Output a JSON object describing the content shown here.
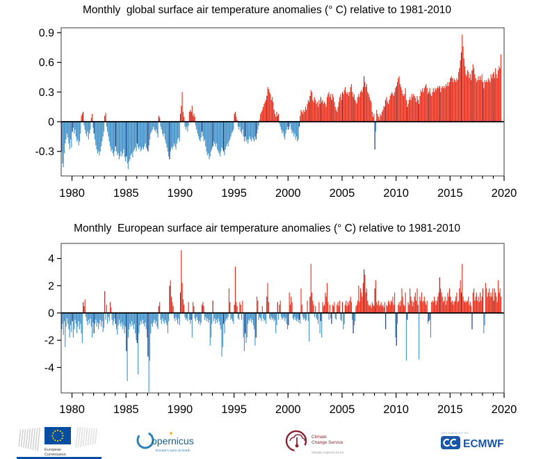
{
  "chart_data": [
    {
      "type": "bar",
      "title": "Monthly  global surface air temperature anomalies (° C) relative to 1981-2010",
      "xlabel": "",
      "ylabel": "",
      "x_start_year": 1979,
      "x_frequency": "monthly",
      "x_range": [
        1979,
        2020
      ],
      "ylim": [
        -0.55,
        0.95
      ],
      "grid": false,
      "legend": "none",
      "y_ticks": [
        {
          "label": "0.9",
          "value": 0.9
        },
        {
          "label": "0.6",
          "value": 0.6
        },
        {
          "label": "0.3",
          "value": 0.3
        },
        {
          "label": "0",
          "value": 0
        },
        {
          "label": "-0.3",
          "value": -0.3
        }
      ],
      "x_ticks_major": [
        "1980",
        "1985",
        "1990",
        "1995",
        "2000",
        "2005",
        "2010",
        "2015",
        "2020"
      ],
      "values": [
        -0.3,
        -0.42,
        -0.46,
        -0.32,
        -0.22,
        -0.18,
        -0.12,
        -0.16,
        -0.22,
        -0.28,
        -0.18,
        -0.26,
        -0.1,
        -0.06,
        -0.12,
        -0.08,
        -0.15,
        -0.2,
        -0.18,
        -0.24,
        -0.2,
        -0.12,
        0.06,
        0.08,
        0.1,
        -0.04,
        -0.08,
        -0.12,
        -0.15,
        -0.1,
        -0.18,
        -0.12,
        -0.08,
        0.04,
        0.08,
        -0.06,
        -0.12,
        -0.18,
        -0.24,
        -0.28,
        -0.32,
        -0.3,
        -0.34,
        -0.3,
        -0.25,
        -0.2,
        -0.15,
        -0.1,
        0.06,
        0.09,
        -0.05,
        -0.1,
        -0.15,
        -0.2,
        -0.25,
        -0.3,
        -0.28,
        -0.32,
        -0.35,
        -0.3,
        -0.25,
        -0.3,
        -0.34,
        -0.32,
        -0.38,
        -0.35,
        -0.3,
        -0.35,
        -0.32,
        -0.28,
        -0.36,
        -0.4,
        -0.35,
        -0.42,
        -0.48,
        -0.4,
        -0.38,
        -0.34,
        -0.32,
        -0.36,
        -0.3,
        -0.28,
        -0.26,
        -0.3,
        -0.22,
        -0.26,
        -0.28,
        -0.25,
        -0.3,
        -0.28,
        -0.26,
        -0.28,
        -0.25,
        -0.22,
        -0.26,
        -0.28,
        -0.3,
        -0.24,
        -0.18,
        -0.12,
        -0.1,
        -0.08,
        -0.05,
        -0.08,
        -0.1,
        -0.08,
        -0.12,
        -0.16,
        0.06,
        0.04,
        -0.05,
        -0.08,
        -0.12,
        -0.15,
        -0.12,
        -0.18,
        -0.22,
        -0.26,
        -0.3,
        -0.35,
        -0.38,
        -0.3,
        -0.26,
        -0.28,
        -0.25,
        -0.22,
        -0.25,
        -0.28,
        -0.22,
        -0.18,
        -0.16,
        -0.2,
        0.08,
        0.16,
        0.3,
        0.1,
        0.05,
        -0.05,
        -0.08,
        -0.05,
        -0.1,
        -0.04,
        0.1,
        0.12,
        0.1,
        0.16,
        0.06,
        0.08,
        0.05,
        -0.04,
        -0.08,
        -0.12,
        -0.15,
        -0.18,
        -0.2,
        -0.16,
        -0.1,
        -0.15,
        -0.2,
        -0.18,
        -0.25,
        -0.3,
        -0.34,
        -0.32,
        -0.38,
        -0.35,
        -0.3,
        -0.28,
        -0.25,
        -0.2,
        -0.22,
        -0.25,
        -0.22,
        -0.28,
        -0.3,
        -0.32,
        -0.35,
        -0.3,
        -0.26,
        -0.28,
        -0.3,
        -0.34,
        -0.28,
        -0.25,
        -0.22,
        -0.25,
        -0.2,
        -0.18,
        -0.15,
        -0.12,
        -0.1,
        -0.08,
        0.08,
        0.1,
        0.05,
        0.02,
        -0.05,
        -0.08,
        -0.05,
        -0.1,
        -0.12,
        -0.08,
        -0.15,
        -0.2,
        -0.15,
        -0.2,
        -0.18,
        -0.22,
        -0.18,
        -0.15,
        -0.18,
        -0.2,
        -0.16,
        -0.18,
        -0.2,
        -0.15,
        -0.18,
        -0.12,
        -0.08,
        -0.04,
        0.02,
        0.08,
        0.1,
        0.12,
        0.15,
        0.18,
        0.2,
        0.22,
        0.26,
        0.35,
        0.33,
        0.3,
        0.28,
        0.22,
        0.25,
        0.2,
        0.12,
        0.08,
        0.05,
        0.1,
        0.06,
        0.08,
        -0.02,
        -0.05,
        -0.08,
        -0.12,
        -0.1,
        -0.15,
        -0.18,
        -0.12,
        -0.08,
        -0.05,
        -0.08,
        -0.05,
        -0.02,
        -0.08,
        -0.12,
        -0.1,
        -0.15,
        -0.12,
        -0.18,
        -0.15,
        -0.2,
        -0.18,
        -0.05,
        0.06,
        0.12,
        0.1,
        0.08,
        0.12,
        0.1,
        0.15,
        0.12,
        0.18,
        0.22,
        0.2,
        0.26,
        0.32,
        0.3,
        0.22,
        0.2,
        0.25,
        0.22,
        0.18,
        0.2,
        0.15,
        0.22,
        0.18,
        0.25,
        0.2,
        0.22,
        0.18,
        0.2,
        0.18,
        0.15,
        0.25,
        0.28,
        0.3,
        0.25,
        0.28,
        0.22,
        0.28,
        0.25,
        0.2,
        0.15,
        0.12,
        0.1,
        0.15,
        0.2,
        0.25,
        0.28,
        0.22,
        0.3,
        0.28,
        0.32,
        0.35,
        0.3,
        0.28,
        0.3,
        0.26,
        0.3,
        0.35,
        0.38,
        0.3,
        0.25,
        0.28,
        0.22,
        0.2,
        0.18,
        0.25,
        0.28,
        0.25,
        0.3,
        0.32,
        0.3,
        0.35,
        0.46,
        0.4,
        0.35,
        0.38,
        0.3,
        0.28,
        0.25,
        0.22,
        0.2,
        0.1,
        0.05,
        0.08,
        -0.28,
        -0.1,
        0.12,
        0.08,
        0.05,
        0.02,
        0.08,
        0.06,
        0.1,
        0.12,
        0.16,
        0.15,
        0.22,
        0.25,
        0.2,
        0.18,
        0.22,
        0.26,
        0.28,
        0.3,
        0.28,
        0.26,
        0.3,
        0.34,
        0.36,
        0.4,
        0.44,
        0.46,
        0.38,
        0.35,
        0.32,
        0.28,
        0.26,
        0.28,
        0.34,
        0.22,
        0.15,
        0.18,
        0.22,
        0.25,
        0.22,
        0.28,
        0.25,
        0.28,
        0.26,
        0.24,
        0.2,
        0.26,
        0.22,
        0.18,
        0.26,
        0.32,
        0.3,
        0.34,
        0.3,
        0.34,
        0.36,
        0.38,
        0.34,
        0.28,
        0.3,
        0.34,
        0.28,
        0.26,
        0.3,
        0.34,
        0.3,
        0.34,
        0.32,
        0.34,
        0.36,
        0.34,
        0.36,
        0.3,
        0.34,
        0.36,
        0.34,
        0.36,
        0.34,
        0.38,
        0.36,
        0.4,
        0.36,
        0.4,
        0.44,
        0.46,
        0.44,
        0.4,
        0.44,
        0.42,
        0.4,
        0.44,
        0.42,
        0.5,
        0.54,
        0.62,
        0.7,
        0.88,
        0.76,
        0.64,
        0.56,
        0.48,
        0.46,
        0.52,
        0.5,
        0.44,
        0.48,
        0.42,
        0.52,
        0.58,
        0.54,
        0.48,
        0.44,
        0.4,
        0.42,
        0.46,
        0.42,
        0.46,
        0.42,
        0.48,
        0.4,
        0.34,
        0.42,
        0.4,
        0.42,
        0.4,
        0.44,
        0.42,
        0.4,
        0.48,
        0.44,
        0.48,
        0.5,
        0.44,
        0.54,
        0.48,
        0.44,
        0.52,
        0.56,
        0.54,
        0.68
      ]
    },
    {
      "type": "bar",
      "title": "Monthly  European surface air temperature anomalies (° C) relative to 1981-2010",
      "xlabel": "",
      "ylabel": "",
      "x_start_year": 1979,
      "x_frequency": "monthly",
      "x_range": [
        1979,
        2020
      ],
      "ylim": [
        -5.9,
        5.1
      ],
      "grid": false,
      "legend": "none",
      "y_ticks": [
        {
          "label": "4",
          "value": 4
        },
        {
          "label": "2",
          "value": 2
        },
        {
          "label": "0",
          "value": 0
        },
        {
          "label": "-2",
          "value": -2
        },
        {
          "label": "-4",
          "value": -4
        }
      ],
      "x_ticks_major": [
        "1980",
        "1985",
        "1990",
        "1995",
        "2000",
        "2005",
        "2010",
        "2015",
        "2020"
      ],
      "values": [
        -1.2,
        -0.8,
        -1.6,
        -0.6,
        -2.5,
        -1.0,
        -0.4,
        -0.8,
        -1.2,
        -1.8,
        -0.9,
        -1.4,
        -0.6,
        -1.8,
        -1.2,
        -0.5,
        -0.8,
        -1.5,
        -1.0,
        -0.6,
        -1.2,
        -0.8,
        -1.5,
        -2.2,
        0.8,
        0.5,
        1.0,
        -0.3,
        -0.6,
        -0.9,
        -0.5,
        -0.8,
        -0.4,
        -1.0,
        -1.8,
        -0.7,
        -1.5,
        -0.8,
        -0.5,
        -1.0,
        -0.7,
        -1.2,
        -0.8,
        -0.5,
        -1.0,
        -0.6,
        -1.4,
        -1.1,
        1.6,
        -0.5,
        0.6,
        -0.8,
        -0.3,
        -0.6,
        0.8,
        0.4,
        -0.5,
        -0.9,
        -0.6,
        -0.4,
        -0.8,
        -1.2,
        -1.6,
        -0.9,
        -0.5,
        -0.8,
        -1.0,
        -0.7,
        -1.2,
        -0.9,
        -1.5,
        -1.0,
        -2.8,
        -5.0,
        -1.8,
        -1.2,
        -0.8,
        -1.0,
        -0.6,
        -0.9,
        -1.2,
        -0.8,
        -1.5,
        -2.0,
        -2.2,
        -4.5,
        -1.5,
        -0.9,
        -0.6,
        -0.8,
        -0.5,
        -0.8,
        -1.0,
        -0.7,
        -1.2,
        -1.8,
        -3.2,
        -5.8,
        -3.5,
        -1.5,
        -0.8,
        -1.0,
        -0.7,
        -0.5,
        -0.8,
        -0.6,
        -1.0,
        -1.2,
        0.5,
        0.8,
        -0.5,
        -0.8,
        -0.4,
        -0.6,
        -0.8,
        -0.5,
        -0.7,
        -0.9,
        -1.5,
        -0.6,
        2.0,
        2.4,
        1.2,
        0.8,
        0.5,
        -0.4,
        -0.6,
        -0.3,
        -0.5,
        -0.8,
        -0.4,
        -0.9,
        1.5,
        4.6,
        2.2,
        1.0,
        0.6,
        -0.3,
        -0.5,
        -0.4,
        -0.6,
        0.8,
        -0.5,
        -0.8,
        -0.5,
        -1.8,
        0.8,
        0.5,
        -0.4,
        -0.6,
        -0.3,
        -0.5,
        -0.8,
        -0.6,
        -0.9,
        -0.7,
        0.6,
        0.8,
        0.5,
        -0.5,
        -0.3,
        -0.6,
        -0.4,
        -0.7,
        -0.5,
        -2.4,
        -1.8,
        -0.8,
        0.9,
        -0.6,
        -0.4,
        -0.8,
        -0.5,
        -0.7,
        -0.4,
        -0.6,
        -0.9,
        -1.2,
        -3.2,
        -2.5,
        -0.8,
        -1.5,
        -0.6,
        -0.4,
        -0.5,
        -0.3,
        1.8,
        0.8,
        -0.5,
        -0.4,
        -0.6,
        -0.8,
        0.6,
        3.4,
        0.8,
        0.5,
        -0.4,
        -0.5,
        0.8,
        0.6,
        -0.5,
        0.9,
        -1.8,
        -2.8,
        -1.5,
        -2.2,
        -1.8,
        -0.8,
        -0.5,
        -0.6,
        -0.4,
        -0.7,
        -0.5,
        -0.9,
        -1.2,
        -2.4,
        -1.8,
        1.2,
        0.9,
        -0.5,
        -0.3,
        -0.4,
        -0.6,
        0.5,
        -0.4,
        -0.6,
        -0.5,
        -0.8,
        1.2,
        2.2,
        0.8,
        -0.4,
        -0.5,
        -0.3,
        -0.5,
        -0.4,
        -0.6,
        -0.5,
        -1.5,
        -0.9,
        0.8,
        -0.5,
        0.6,
        0.9,
        -0.3,
        -0.5,
        -0.4,
        -0.3,
        -0.6,
        -0.4,
        -0.8,
        -1.2,
        -0.9,
        1.5,
        0.6,
        1.2,
        0.8,
        -0.4,
        -0.5,
        -0.3,
        -0.5,
        -0.6,
        -0.4,
        -0.7,
        -0.5,
        -0.8,
        1.8,
        0.6,
        -0.3,
        -0.5,
        -0.4,
        -0.6,
        -0.5,
        0.9,
        -0.6,
        -2.1,
        1.2,
        3.6,
        1.5,
        0.9,
        0.6,
        -0.3,
        0.5,
        -0.4,
        -0.5,
        -0.8,
        0.8,
        -1.5,
        -0.6,
        -1.8,
        0.8,
        0.5,
        0.6,
        1.5,
        1.2,
        2.2,
        0.8,
        -0.5,
        0.6,
        -0.4,
        -0.8,
        0.6,
        0.5,
        0.8,
        -0.4,
        -0.5,
        0.6,
        0.8,
        0.5,
        0.9,
        -0.5,
        -0.6,
        0.8,
        -1.2,
        -0.8,
        0.6,
        0.9,
        0.5,
        0.8,
        0.6,
        0.9,
        1.2,
        0.8,
        -0.5,
        -1.5,
        -0.9,
        -0.6,
        0.5,
        0.6,
        0.9,
        2.0,
        0.8,
        1.8,
        1.5,
        1.2,
        2.2,
        3.2,
        2.8,
        1.5,
        1.8,
        0.9,
        0.6,
        0.5,
        0.6,
        0.4,
        0.8,
        0.6,
        0.5,
        1.8,
        2.4,
        0.8,
        0.6,
        0.9,
        0.5,
        0.6,
        0.8,
        0.5,
        0.6,
        0.4,
        0.8,
        -1.2,
        0.6,
        0.5,
        0.9,
        0.8,
        0.6,
        0.9,
        0.8,
        1.2,
        0.6,
        1.5,
        -1.8,
        -2.4,
        -0.8,
        0.6,
        0.8,
        0.5,
        0.9,
        1.8,
        1.2,
        0.6,
        0.5,
        1.5,
        -3.5,
        -0.5,
        0.8,
        0.6,
        1.8,
        1.2,
        0.9,
        0.5,
        0.8,
        1.2,
        1.5,
        0.9,
        1.8,
        0.6,
        -3.4,
        1.2,
        0.9,
        1.5,
        0.8,
        0.9,
        1.2,
        0.8,
        0.6,
        0.9,
        -0.8,
        -0.6,
        -0.5,
        -1.8,
        0.8,
        0.9,
        0.8,
        1.2,
        0.9,
        0.6,
        0.9,
        1.2,
        1.5,
        2.6,
        1.8,
        1.5,
        1.2,
        0.8,
        0.9,
        1.2,
        0.6,
        0.9,
        1.5,
        1.2,
        1.8,
        1.2,
        0.8,
        0.9,
        0.6,
        0.8,
        0.9,
        1.2,
        1.5,
        0.8,
        0.9,
        1.8,
        2.4,
        1.5,
        3.6,
        1.2,
        0.9,
        0.8,
        0.9,
        0.8,
        0.9,
        1.2,
        0.6,
        0.8,
        0.5,
        -1.2,
        1.5,
        1.8,
        0.9,
        1.2,
        1.5,
        0.9,
        1.2,
        0.8,
        1.5,
        0.9,
        1.2,
        1.8,
        -1.5,
        -0.9,
        2.2,
        1.8,
        1.2,
        1.5,
        1.8,
        1.2,
        1.5,
        1.2,
        1.8,
        0.9,
        1.8,
        1.5,
        1.2,
        0.8,
        2.4,
        1.5,
        1.8,
        1.2
      ]
    }
  ],
  "colors": {
    "positive": "#e8321f",
    "positive_dark": "#8e2222",
    "negative": "#4593c9",
    "negative_dark": "#0f3175",
    "zero_line": "#000000",
    "frame": "#4a4a4a",
    "tick_text": "#000000"
  },
  "footer": {
    "ec": {
      "line1": "European",
      "line2": "Commission"
    },
    "copernicus": {
      "word": "opernicus",
      "tagline": "Europe's eyes on Earth"
    },
    "c3s": {
      "line1": "Climate",
      "line2": "Change Service",
      "tagline": "climate.copernicus.eu"
    },
    "ecmwf": {
      "implemented_by": "IMPLEMENTED BY",
      "name": "ECMWF"
    }
  }
}
